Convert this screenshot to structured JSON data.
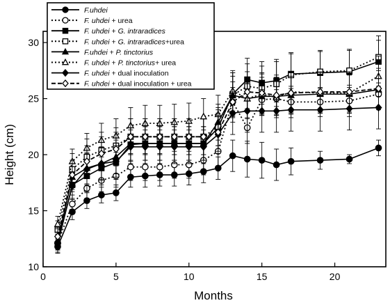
{
  "chart_data": {
    "type": "line",
    "xlabel": "Months",
    "ylabel": "Height (cm)",
    "xlim": [
      0,
      23.5
    ],
    "ylim": [
      10,
      31
    ],
    "xticks": [
      0,
      5,
      10,
      15,
      20
    ],
    "yticks": [
      10,
      15,
      20,
      25,
      30
    ],
    "legend_position": "top-left",
    "grid": false,
    "series": [
      {
        "name_parts": [
          {
            "t": "F.uhdei",
            "i": true
          }
        ],
        "marker": "circle",
        "fill": "filled",
        "line": "solid",
        "x": [
          1,
          2,
          3,
          4,
          5,
          6,
          7,
          8,
          9,
          10,
          11,
          12,
          13,
          14,
          15,
          16,
          17,
          19,
          21,
          23
        ],
        "y": [
          11.8,
          14.9,
          15.9,
          16.4,
          16.6,
          18.0,
          18.1,
          18.2,
          18.2,
          18.3,
          18.5,
          18.8,
          19.9,
          19.6,
          19.5,
          19.1,
          19.4,
          19.5,
          19.6,
          20.6
        ],
        "err": [
          0.6,
          0.7,
          0.7,
          0.7,
          0.7,
          0.9,
          1.0,
          1.0,
          1.0,
          1.0,
          1.0,
          1.0,
          1.4,
          1.6,
          1.6,
          1.4,
          1.2,
          0.8,
          0.4,
          0.7
        ]
      },
      {
        "name_parts": [
          {
            "t": "F. uhdei",
            "i": true
          },
          {
            "t": " + urea",
            "i": false
          }
        ],
        "marker": "circle",
        "fill": "open",
        "line": "dotted",
        "x": [
          1,
          2,
          3,
          4,
          5,
          6,
          7,
          8,
          9,
          10,
          11,
          12,
          13,
          14,
          15,
          16,
          17,
          19,
          21,
          23
        ],
        "y": [
          12.1,
          15.6,
          17.0,
          17.7,
          18.1,
          18.9,
          18.9,
          18.9,
          19.1,
          19.1,
          19.5,
          20.3,
          24.7,
          22.4,
          24.9,
          25.0,
          24.7,
          24.7,
          24.8,
          25.4
        ],
        "err": [
          0.6,
          0.8,
          0.9,
          1.0,
          1.0,
          1.2,
          1.2,
          1.2,
          1.2,
          1.2,
          1.3,
          1.5,
          1.3,
          1.4,
          1.4,
          1.4,
          1.4,
          1.3,
          1.4,
          1.4
        ]
      },
      {
        "name_parts": [
          {
            "t": "F. uhdei",
            "i": true
          },
          {
            "t": " + ",
            "i": false
          },
          {
            "t": "G. intraradices",
            "i": true
          }
        ],
        "marker": "square",
        "fill": "filled",
        "line": "solid",
        "x": [
          1,
          2,
          3,
          4,
          5,
          6,
          7,
          8,
          9,
          10,
          11,
          12,
          13,
          14,
          15,
          16,
          17,
          19,
          21,
          23
        ],
        "y": [
          12.0,
          17.3,
          18.1,
          18.8,
          19.3,
          20.9,
          21.0,
          21.0,
          21.0,
          21.0,
          21.0,
          22.4,
          25.4,
          26.7,
          26.4,
          26.6,
          27.2,
          27.3,
          27.4,
          28.3
        ],
        "err": [
          0.7,
          1.2,
          1.4,
          1.5,
          1.5,
          1.5,
          1.5,
          1.5,
          1.5,
          1.5,
          1.5,
          1.6,
          1.9,
          1.9,
          1.9,
          1.9,
          1.9,
          1.9,
          1.9,
          1.9
        ]
      },
      {
        "name_parts": [
          {
            "t": "F. uhdei",
            "i": true
          },
          {
            "t": " + ",
            "i": false
          },
          {
            "t": "G. intraradices",
            "i": true
          },
          {
            "t": "+urea",
            "i": false
          }
        ],
        "marker": "square",
        "fill": "open",
        "line": "dotted",
        "x": [
          1,
          2,
          3,
          4,
          5,
          6,
          7,
          8,
          9,
          10,
          11,
          12,
          13,
          14,
          15,
          16,
          17,
          19,
          21,
          23
        ],
        "y": [
          13.3,
          18.7,
          19.8,
          20.4,
          20.8,
          21.6,
          21.6,
          21.6,
          21.6,
          21.6,
          21.6,
          22.5,
          25.3,
          26.1,
          25.9,
          26.3,
          27.1,
          27.4,
          27.5,
          28.7
        ],
        "err": [
          0.8,
          1.4,
          1.6,
          1.6,
          1.6,
          1.6,
          1.6,
          1.6,
          1.6,
          1.6,
          1.6,
          1.7,
          2.0,
          2.0,
          2.0,
          2.0,
          1.9,
          1.9,
          1.9,
          1.9
        ]
      },
      {
        "name_parts": [
          {
            "t": "F.uhdei",
            "i": true
          },
          {
            "t": " + ",
            "i": false
          },
          {
            "t": "P. tinctorius",
            "i": true
          }
        ],
        "marker": "triangle",
        "fill": "filled",
        "line": "solid",
        "x": [
          1,
          2,
          3,
          4,
          5,
          6,
          7,
          8,
          9,
          10,
          11,
          12,
          13,
          14,
          15,
          16,
          17,
          19,
          21,
          23
        ],
        "y": [
          12.3,
          18.0,
          18.8,
          19.2,
          19.8,
          21.0,
          21.0,
          21.0,
          21.0,
          21.0,
          21.0,
          22.9,
          25.3,
          25.0,
          25.2,
          25.2,
          25.3,
          25.4,
          25.4,
          25.8
        ],
        "err": [
          0.6,
          1.3,
          1.4,
          1.5,
          1.5,
          1.5,
          1.5,
          1.5,
          1.5,
          1.5,
          1.5,
          1.6,
          1.7,
          1.7,
          1.7,
          1.7,
          1.7,
          1.7,
          1.7,
          1.7
        ]
      },
      {
        "name_parts": [
          {
            "t": "F. uhdei",
            "i": true
          },
          {
            "t": " + ",
            "i": false
          },
          {
            "t": "P. tinctorius",
            "i": true
          },
          {
            "t": "+ urea",
            "i": false
          }
        ],
        "marker": "triangle",
        "fill": "open",
        "line": "dotted",
        "x": [
          1,
          2,
          3,
          4,
          5,
          6,
          7,
          8,
          9,
          10,
          11,
          12,
          13,
          14,
          15,
          16,
          17,
          19,
          21,
          23
        ],
        "y": [
          13.8,
          19.4,
          20.6,
          21.3,
          21.7,
          22.6,
          22.8,
          22.8,
          22.9,
          23.0,
          23.4,
          23.6,
          25.7,
          25.0,
          25.4,
          25.1,
          25.6,
          25.5,
          25.5,
          27.0
        ],
        "err": [
          0.7,
          1.1,
          1.3,
          1.5,
          1.5,
          1.6,
          1.6,
          1.6,
          1.6,
          1.6,
          1.6,
          1.7,
          1.8,
          1.8,
          1.8,
          1.8,
          1.8,
          1.8,
          1.8,
          1.8
        ]
      },
      {
        "name_parts": [
          {
            "t": "F. uhdei",
            "i": true
          },
          {
            "t": " + dual inoculation",
            "i": false
          }
        ],
        "marker": "diamond",
        "fill": "filled",
        "line": "solid",
        "x": [
          1,
          2,
          3,
          4,
          5,
          6,
          7,
          8,
          9,
          10,
          11,
          12,
          13,
          14,
          15,
          16,
          17,
          19,
          21,
          23
        ],
        "y": [
          12.2,
          17.2,
          18.7,
          19.2,
          19.4,
          20.7,
          20.7,
          20.7,
          20.7,
          20.7,
          20.7,
          21.8,
          23.7,
          23.9,
          23.9,
          23.9,
          24.0,
          24.0,
          24.1,
          24.2
        ],
        "err": [
          0.7,
          1.2,
          1.4,
          1.4,
          1.4,
          1.5,
          1.5,
          1.5,
          1.5,
          1.5,
          1.5,
          1.7,
          1.9,
          1.9,
          1.9,
          1.9,
          1.9,
          1.9,
          1.9,
          1.9
        ]
      },
      {
        "name_parts": [
          {
            "t": "F. uhdei",
            "i": true
          },
          {
            "t": " + dual inoculation + urea",
            "i": false
          }
        ],
        "marker": "diamond",
        "fill": "open",
        "line": "dashed",
        "x": [
          1,
          2,
          3,
          4,
          5,
          6,
          7,
          8,
          9,
          10,
          11,
          12,
          13,
          14,
          15,
          16,
          17,
          19,
          21,
          23
        ],
        "y": [
          12.7,
          18.2,
          19.4,
          20.1,
          20.5,
          21.6,
          21.6,
          21.6,
          21.6,
          21.6,
          21.6,
          22.0,
          24.7,
          25.6,
          25.5,
          25.3,
          25.5,
          25.6,
          25.6,
          25.9
        ],
        "err": [
          0.7,
          1.3,
          1.4,
          1.5,
          1.5,
          1.6,
          1.6,
          1.6,
          1.6,
          1.6,
          1.6,
          1.7,
          1.8,
          1.8,
          1.8,
          1.8,
          1.8,
          1.8,
          1.8,
          1.8
        ]
      }
    ]
  }
}
